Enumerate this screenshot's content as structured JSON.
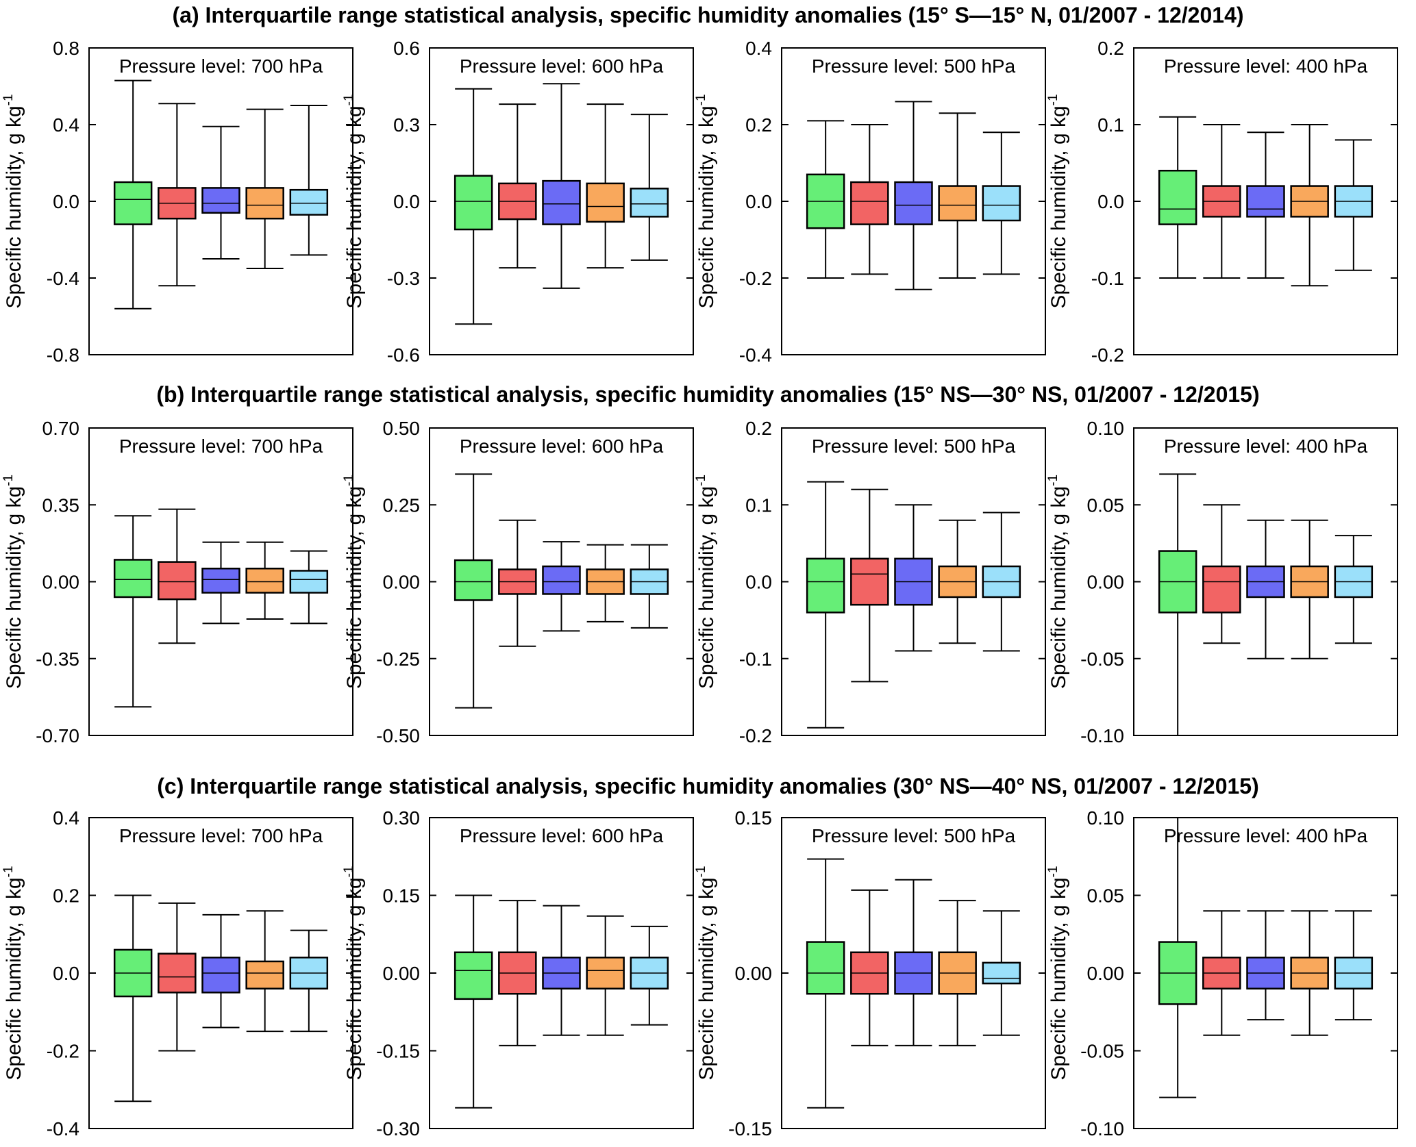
{
  "rows": [
    {
      "title": "(a)  Interquartile range statistical analysis,  specific humidity anomalies (15° S—15°  N, 01/2007 - 12/2014)"
    },
    {
      "title": "(b)  Interquartile range statistical analysis,  specific humidity anomalies (15° NS—30° NS, 01/2007 - 12/2015)"
    },
    {
      "title": "(c)  Interquartile range statistical analysis,  specific humidity anomalies (30° NS—40° NS, 01/2007 - 12/2015)"
    }
  ],
  "series_colors": [
    "#66ee77",
    "#f26464",
    "#6b6bf5",
    "#f9a85c",
    "#9be0fa"
  ],
  "chart_data": [
    {
      "type": "boxplot",
      "row": 0,
      "title": "Pressure level: 700 hPa",
      "ylabel": "Specific humidity, g kg-1",
      "ylim": [
        -0.8,
        0.8
      ],
      "yticks": [
        0.8,
        0.4,
        0.0,
        -0.4,
        -0.8
      ],
      "ytick_labels": [
        "0.8",
        "0.4",
        "0.0",
        "-0.4",
        "-0.8"
      ],
      "boxes": [
        {
          "min": -0.56,
          "q1": -0.12,
          "median": 0.01,
          "q3": 0.1,
          "max": 0.63
        },
        {
          "min": -0.44,
          "q1": -0.09,
          "median": -0.01,
          "q3": 0.07,
          "max": 0.51
        },
        {
          "min": -0.3,
          "q1": -0.06,
          "median": -0.01,
          "q3": 0.07,
          "max": 0.39
        },
        {
          "min": -0.35,
          "q1": -0.09,
          "median": -0.02,
          "q3": 0.07,
          "max": 0.48
        },
        {
          "min": -0.28,
          "q1": -0.07,
          "median": -0.01,
          "q3": 0.06,
          "max": 0.5
        }
      ]
    },
    {
      "type": "boxplot",
      "row": 0,
      "title": "Pressure level: 600 hPa",
      "ylabel": "Specific humidity, g kg-1",
      "ylim": [
        -0.6,
        0.6
      ],
      "yticks": [
        0.6,
        0.3,
        0.0,
        -0.3,
        -0.6
      ],
      "ytick_labels": [
        "0.6",
        "0.3",
        "0.0",
        "-0.3",
        "-0.6"
      ],
      "boxes": [
        {
          "min": -0.48,
          "q1": -0.11,
          "median": 0.0,
          "q3": 0.1,
          "max": 0.44
        },
        {
          "min": -0.26,
          "q1": -0.07,
          "median": 0.0,
          "q3": 0.07,
          "max": 0.38
        },
        {
          "min": -0.34,
          "q1": -0.09,
          "median": -0.01,
          "q3": 0.08,
          "max": 0.46
        },
        {
          "min": -0.26,
          "q1": -0.08,
          "median": -0.02,
          "q3": 0.07,
          "max": 0.38
        },
        {
          "min": -0.23,
          "q1": -0.06,
          "median": -0.01,
          "q3": 0.05,
          "max": 0.34
        }
      ]
    },
    {
      "type": "boxplot",
      "row": 0,
      "title": "Pressure level: 500 hPa",
      "ylabel": "Specific humidity, g kg-1",
      "ylim": [
        -0.4,
        0.4
      ],
      "yticks": [
        0.4,
        0.2,
        0.0,
        -0.2,
        -0.4
      ],
      "ytick_labels": [
        "0.4",
        "0.2",
        "0.0",
        "-0.2",
        "-0.4"
      ],
      "boxes": [
        {
          "min": -0.2,
          "q1": -0.07,
          "median": 0.0,
          "q3": 0.07,
          "max": 0.21
        },
        {
          "min": -0.19,
          "q1": -0.06,
          "median": 0.0,
          "q3": 0.05,
          "max": 0.2
        },
        {
          "min": -0.23,
          "q1": -0.06,
          "median": -0.01,
          "q3": 0.05,
          "max": 0.26
        },
        {
          "min": -0.2,
          "q1": -0.05,
          "median": -0.01,
          "q3": 0.04,
          "max": 0.23
        },
        {
          "min": -0.19,
          "q1": -0.05,
          "median": -0.01,
          "q3": 0.04,
          "max": 0.18
        }
      ]
    },
    {
      "type": "boxplot",
      "row": 0,
      "title": "Pressure level: 400 hPa",
      "ylabel": "Specific humidity, g kg-1",
      "ylim": [
        -0.2,
        0.2
      ],
      "yticks": [
        0.2,
        0.1,
        0.0,
        -0.1,
        -0.2
      ],
      "ytick_labels": [
        "0.2",
        "0.1",
        "0.0",
        "-0.1",
        "-0.2"
      ],
      "boxes": [
        {
          "min": -0.1,
          "q1": -0.03,
          "median": -0.01,
          "q3": 0.04,
          "max": 0.11
        },
        {
          "min": -0.1,
          "q1": -0.02,
          "median": 0.0,
          "q3": 0.02,
          "max": 0.1
        },
        {
          "min": -0.1,
          "q1": -0.02,
          "median": -0.01,
          "q3": 0.02,
          "max": 0.09
        },
        {
          "min": -0.11,
          "q1": -0.02,
          "median": 0.0,
          "q3": 0.02,
          "max": 0.1
        },
        {
          "min": -0.09,
          "q1": -0.02,
          "median": 0.0,
          "q3": 0.02,
          "max": 0.08
        }
      ]
    },
    {
      "type": "boxplot",
      "row": 1,
      "title": "Pressure level: 700 hPa",
      "ylabel": "Specific humidity, g kg-1",
      "ylim": [
        -0.7,
        0.7
      ],
      "yticks": [
        0.7,
        0.35,
        0.0,
        -0.35,
        -0.7
      ],
      "ytick_labels": [
        "0.70",
        "0.35",
        "0.00",
        "-0.35",
        "-0.70"
      ],
      "boxes": [
        {
          "min": -0.57,
          "q1": -0.07,
          "median": 0.01,
          "q3": 0.1,
          "max": 0.3
        },
        {
          "min": -0.28,
          "q1": -0.08,
          "median": 0.0,
          "q3": 0.09,
          "max": 0.33
        },
        {
          "min": -0.19,
          "q1": -0.05,
          "median": 0.01,
          "q3": 0.06,
          "max": 0.18
        },
        {
          "min": -0.17,
          "q1": -0.05,
          "median": 0.0,
          "q3": 0.06,
          "max": 0.18
        },
        {
          "min": -0.19,
          "q1": -0.05,
          "median": 0.01,
          "q3": 0.05,
          "max": 0.14
        }
      ]
    },
    {
      "type": "boxplot",
      "row": 1,
      "title": "Pressure level: 600 hPa",
      "ylabel": "Specific humidity, g kg-1",
      "ylim": [
        -0.5,
        0.5
      ],
      "yticks": [
        0.5,
        0.25,
        0.0,
        -0.25,
        -0.5
      ],
      "ytick_labels": [
        "0.50",
        "0.25",
        "0.00",
        "-0.25",
        "-0.50"
      ],
      "boxes": [
        {
          "min": -0.41,
          "q1": -0.06,
          "median": 0.0,
          "q3": 0.07,
          "max": 0.35
        },
        {
          "min": -0.21,
          "q1": -0.04,
          "median": 0.0,
          "q3": 0.04,
          "max": 0.2
        },
        {
          "min": -0.16,
          "q1": -0.04,
          "median": 0.0,
          "q3": 0.05,
          "max": 0.13
        },
        {
          "min": -0.13,
          "q1": -0.04,
          "median": 0.0,
          "q3": 0.04,
          "max": 0.12
        },
        {
          "min": -0.15,
          "q1": -0.04,
          "median": 0.0,
          "q3": 0.04,
          "max": 0.12
        }
      ]
    },
    {
      "type": "boxplot",
      "row": 1,
      "title": "Pressure level: 500 hPa",
      "ylabel": "Specific humidity, g kg-1",
      "ylim": [
        -0.2,
        0.2
      ],
      "yticks": [
        0.2,
        0.1,
        0.0,
        -0.1,
        -0.2
      ],
      "ytick_labels": [
        "0.2",
        "0.1",
        "0.0",
        "-0.1",
        "-0.2"
      ],
      "boxes": [
        {
          "min": -0.19,
          "q1": -0.04,
          "median": 0.0,
          "q3": 0.03,
          "max": 0.13
        },
        {
          "min": -0.13,
          "q1": -0.03,
          "median": 0.01,
          "q3": 0.03,
          "max": 0.12
        },
        {
          "min": -0.09,
          "q1": -0.03,
          "median": 0.0,
          "q3": 0.03,
          "max": 0.1
        },
        {
          "min": -0.08,
          "q1": -0.02,
          "median": 0.0,
          "q3": 0.02,
          "max": 0.08
        },
        {
          "min": -0.09,
          "q1": -0.02,
          "median": 0.0,
          "q3": 0.02,
          "max": 0.09
        }
      ]
    },
    {
      "type": "boxplot",
      "row": 1,
      "title": "Pressure level: 400 hPa",
      "ylabel": "Specific humidity, g kg-1",
      "ylim": [
        -0.1,
        0.1
      ],
      "yticks": [
        0.1,
        0.05,
        0.0,
        -0.05,
        -0.1
      ],
      "ytick_labels": [
        "0.10",
        "0.05",
        "0.00",
        "-0.05",
        "-0.10"
      ],
      "boxes": [
        {
          "min": -0.1,
          "q1": -0.02,
          "median": 0.0,
          "q3": 0.02,
          "max": 0.07
        },
        {
          "min": -0.04,
          "q1": -0.02,
          "median": 0.0,
          "q3": 0.01,
          "max": 0.05
        },
        {
          "min": -0.05,
          "q1": -0.01,
          "median": 0.0,
          "q3": 0.01,
          "max": 0.04
        },
        {
          "min": -0.05,
          "q1": -0.01,
          "median": 0.0,
          "q3": 0.01,
          "max": 0.04
        },
        {
          "min": -0.04,
          "q1": -0.01,
          "median": 0.0,
          "q3": 0.01,
          "max": 0.03
        }
      ]
    },
    {
      "type": "boxplot",
      "row": 2,
      "title": "Pressure level: 700 hPa",
      "ylabel": "Specific humidity, g kg-1",
      "ylim": [
        -0.4,
        0.4
      ],
      "yticks": [
        0.4,
        0.2,
        0.0,
        -0.2,
        -0.4
      ],
      "ytick_labels": [
        "0.4",
        "0.2",
        "0.0",
        "-0.2",
        "-0.4"
      ],
      "boxes": [
        {
          "min": -0.33,
          "q1": -0.06,
          "median": 0.0,
          "q3": 0.06,
          "max": 0.2
        },
        {
          "min": -0.2,
          "q1": -0.05,
          "median": -0.01,
          "q3": 0.05,
          "max": 0.18
        },
        {
          "min": -0.14,
          "q1": -0.05,
          "median": 0.0,
          "q3": 0.04,
          "max": 0.15
        },
        {
          "min": -0.15,
          "q1": -0.04,
          "median": 0.0,
          "q3": 0.03,
          "max": 0.16
        },
        {
          "min": -0.15,
          "q1": -0.04,
          "median": 0.0,
          "q3": 0.04,
          "max": 0.11
        }
      ]
    },
    {
      "type": "boxplot",
      "row": 2,
      "title": "Pressure level: 600 hPa",
      "ylabel": "Specific humidity, g kg-1",
      "ylim": [
        -0.3,
        0.3
      ],
      "yticks": [
        0.3,
        0.15,
        0.0,
        -0.15,
        -0.3
      ],
      "ytick_labels": [
        "0.30",
        "0.15",
        "0.00",
        "-0.15",
        "-0.30"
      ],
      "boxes": [
        {
          "min": -0.26,
          "q1": -0.05,
          "median": 0.005,
          "q3": 0.04,
          "max": 0.15
        },
        {
          "min": -0.14,
          "q1": -0.04,
          "median": 0.0,
          "q3": 0.04,
          "max": 0.14
        },
        {
          "min": -0.12,
          "q1": -0.03,
          "median": 0.0,
          "q3": 0.03,
          "max": 0.13
        },
        {
          "min": -0.12,
          "q1": -0.03,
          "median": 0.005,
          "q3": 0.03,
          "max": 0.11
        },
        {
          "min": -0.1,
          "q1": -0.03,
          "median": 0.0,
          "q3": 0.03,
          "max": 0.09
        }
      ]
    },
    {
      "type": "boxplot",
      "row": 2,
      "title": "Pressure level: 500 hPa",
      "ylabel": "Specific humidity, g kg-1",
      "ylim": [
        -0.15,
        0.15
      ],
      "yticks": [
        0.15,
        0.0,
        -0.15
      ],
      "ytick_labels": [
        "0.15",
        "0.00",
        "-0.15"
      ],
      "boxes": [
        {
          "min": -0.13,
          "q1": -0.02,
          "median": 0.0,
          "q3": 0.03,
          "max": 0.11
        },
        {
          "min": -0.07,
          "q1": -0.02,
          "median": 0.0,
          "q3": 0.02,
          "max": 0.08
        },
        {
          "min": -0.07,
          "q1": -0.02,
          "median": 0.0,
          "q3": 0.02,
          "max": 0.09
        },
        {
          "min": -0.07,
          "q1": -0.02,
          "median": 0.0,
          "q3": 0.02,
          "max": 0.07
        },
        {
          "min": -0.06,
          "q1": -0.01,
          "median": -0.005,
          "q3": 0.01,
          "max": 0.06
        }
      ]
    },
    {
      "type": "boxplot",
      "row": 2,
      "title": "Pressure level: 400 hPa",
      "ylabel": "Specific humidity, g kg-1",
      "ylim": [
        -0.1,
        0.1
      ],
      "yticks": [
        0.1,
        0.05,
        0.0,
        -0.05,
        -0.1
      ],
      "ytick_labels": [
        "0.10",
        "0.05",
        "0.00",
        "-0.05",
        "-0.10"
      ],
      "boxes": [
        {
          "min": -0.08,
          "q1": -0.02,
          "median": 0.0,
          "q3": 0.02,
          "max": 0.1
        },
        {
          "min": -0.04,
          "q1": -0.01,
          "median": 0.0,
          "q3": 0.01,
          "max": 0.04
        },
        {
          "min": -0.03,
          "q1": -0.01,
          "median": 0.0,
          "q3": 0.01,
          "max": 0.04
        },
        {
          "min": -0.04,
          "q1": -0.01,
          "median": 0.0,
          "q3": 0.01,
          "max": 0.04
        },
        {
          "min": -0.03,
          "q1": -0.01,
          "median": 0.0,
          "q3": 0.01,
          "max": 0.04
        }
      ]
    }
  ]
}
